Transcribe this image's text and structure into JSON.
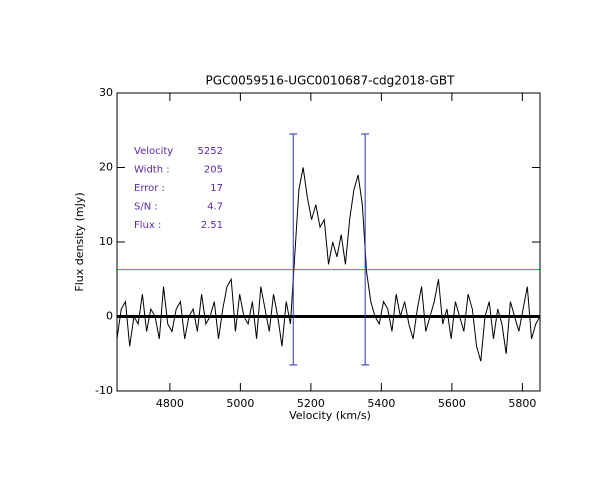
{
  "chart_data": {
    "type": "line",
    "title": "PGC0059516-UGC0010687-cdg2018-GBT",
    "xlabel": "Velocity (km/s)",
    "ylabel": "Flux density (mJy)",
    "xlim": [
      4650,
      5850
    ],
    "ylim": [
      -10,
      30
    ],
    "xticks": [
      4800,
      5000,
      5200,
      5400,
      5600,
      5800
    ],
    "yticks": [
      -10,
      0,
      10,
      20,
      30
    ],
    "x": [
      4650,
      4662,
      4674,
      4686,
      4698,
      4710,
      4722,
      4734,
      4746,
      4758,
      4770,
      4782,
      4794,
      4806,
      4818,
      4830,
      4842,
      4854,
      4866,
      4878,
      4890,
      4902,
      4914,
      4926,
      4938,
      4950,
      4962,
      4974,
      4986,
      4998,
      5010,
      5022,
      5034,
      5046,
      5058,
      5070,
      5082,
      5094,
      5106,
      5118,
      5130,
      5142,
      5154,
      5166,
      5178,
      5190,
      5202,
      5214,
      5226,
      5238,
      5250,
      5262,
      5274,
      5286,
      5298,
      5310,
      5322,
      5334,
      5346,
      5358,
      5370,
      5382,
      5394,
      5406,
      5418,
      5430,
      5442,
      5454,
      5466,
      5478,
      5490,
      5502,
      5514,
      5526,
      5538,
      5550,
      5562,
      5574,
      5586,
      5598,
      5610,
      5622,
      5634,
      5646,
      5658,
      5670,
      5682,
      5694,
      5706,
      5718,
      5730,
      5742,
      5754,
      5766,
      5778,
      5790,
      5802,
      5814,
      5826,
      5838,
      5850
    ],
    "series": [
      {
        "color": "#000000",
        "values": [
          -3,
          1,
          2,
          -4,
          0,
          -1,
          3,
          -2,
          1,
          0,
          -3,
          4,
          -1,
          -2,
          1,
          2,
          -3,
          0,
          1,
          -2,
          3,
          -1,
          0,
          2,
          -3,
          1,
          4,
          5,
          -2,
          3,
          0,
          -1,
          2,
          -3,
          4,
          1,
          -2,
          3,
          0,
          -4,
          2,
          -1,
          8,
          17,
          20,
          16,
          13,
          15,
          12,
          13,
          7,
          10,
          8,
          11,
          7,
          13,
          17,
          19,
          15,
          6,
          2,
          0,
          -1,
          2,
          1,
          -2,
          3,
          0,
          2,
          -1,
          -3,
          1,
          4,
          -2,
          0,
          2,
          5,
          -1,
          1,
          -3,
          2,
          0,
          -2,
          3,
          1,
          -4,
          -6,
          0,
          2,
          -3,
          1,
          -1,
          -5,
          2,
          0,
          -2,
          1,
          4,
          -3,
          -1,
          0
        ]
      }
    ],
    "threshold": {
      "value": 6.3,
      "color": "#00cc00"
    },
    "markers": {
      "x": [
        5150,
        5354
      ],
      "range": [
        -6.5,
        24.5
      ],
      "color": "#3030c0"
    },
    "stats_color": "#5a2aa8",
    "stats": [
      {
        "label": "Velocity",
        "value": 5252
      },
      {
        "label": "Width :",
        "value": 205
      },
      {
        "label": "Error :",
        "value": 17
      },
      {
        "label": "S/N :",
        "value": 4.7
      },
      {
        "label": "Flux :",
        "value": 2.51
      }
    ]
  }
}
